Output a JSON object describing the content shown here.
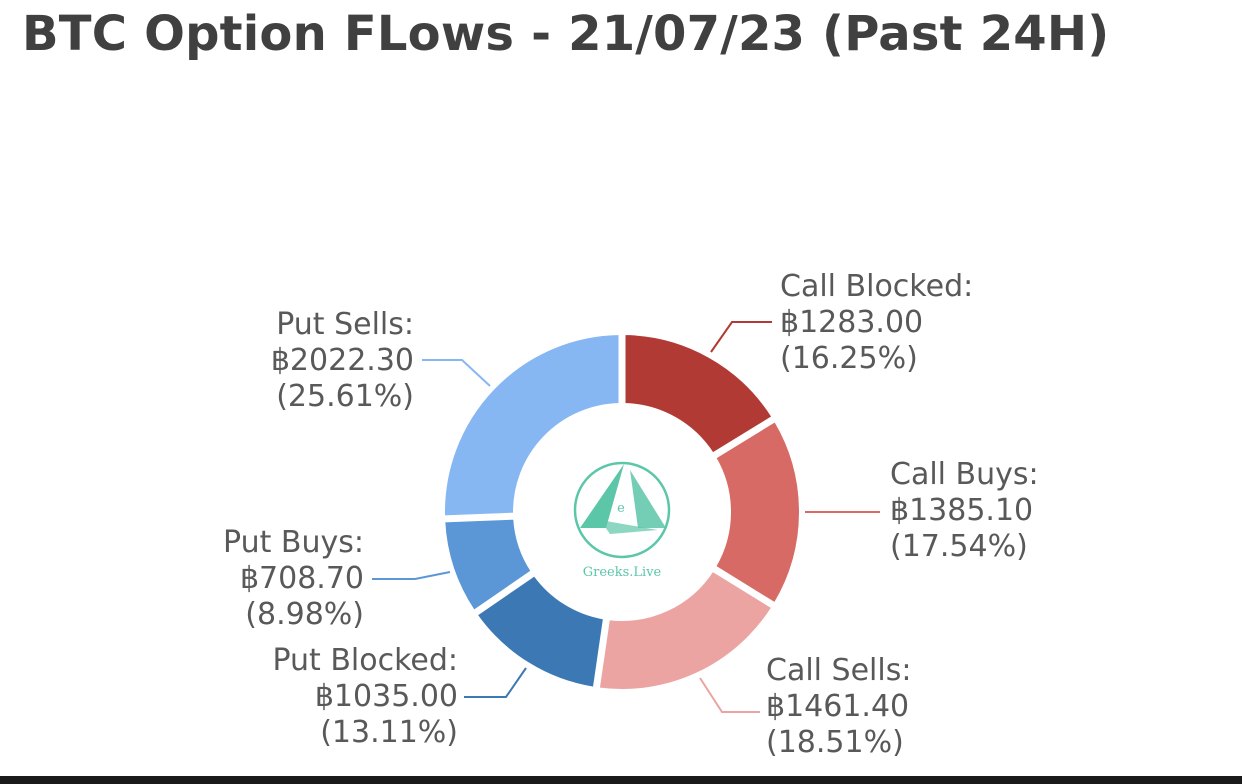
{
  "title": "BTC Option FLows - 21/07/23  (Past 24H)",
  "logo": {
    "text": "Greeks.Live",
    "glyph": "e"
  },
  "chart_data": {
    "type": "pie",
    "variant": "donut",
    "currency_symbol": "฿",
    "title": "BTC Option FLows - 21/07/23  (Past 24H)",
    "slices": [
      {
        "name": "Call Blocked",
        "value": 1283.0,
        "percent": 16.25,
        "value_label": "฿1283.00",
        "percent_label": "(16.25%)",
        "color": "#b23a34"
      },
      {
        "name": "Call Buys",
        "value": 1385.1,
        "percent": 17.54,
        "value_label": "฿1385.10",
        "percent_label": "(17.54%)",
        "color": "#d86a66"
      },
      {
        "name": "Call Sells",
        "value": 1461.4,
        "percent": 18.51,
        "value_label": "฿1461.40",
        "percent_label": "(18.51%)",
        "color": "#eba4a1"
      },
      {
        "name": "Put Blocked",
        "value": 1035.0,
        "percent": 13.11,
        "value_label": "฿1035.00",
        "percent_label": "(13.11%)",
        "color": "#3c78b4"
      },
      {
        "name": "Put Buys",
        "value": 708.7,
        "percent": 8.98,
        "value_label": "฿708.70",
        "percent_label": "(8.98%)",
        "color": "#5b97d6"
      },
      {
        "name": "Put Sells",
        "value": 2022.3,
        "percent": 25.61,
        "value_label": "฿2022.30",
        "percent_label": "(25.61%)",
        "color": "#86b7f2"
      }
    ]
  }
}
